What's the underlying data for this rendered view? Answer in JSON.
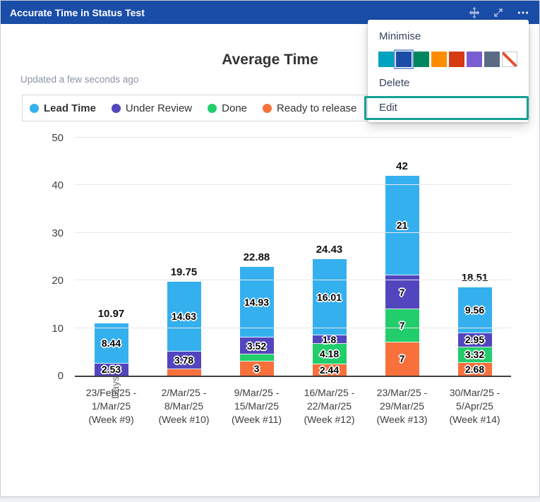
{
  "widget": {
    "title": "Accurate Time in Status Test",
    "header_icons": [
      "move-icon",
      "expand-icon",
      "more-menu-icon"
    ],
    "header_color": "#1a4da8"
  },
  "status": {
    "updated": "Updated a few seconds ago"
  },
  "menu": {
    "minimise_label": "Minimise",
    "delete_label": "Delete",
    "edit_label": "Edit",
    "highlight_color": "#11a292",
    "swatches": [
      {
        "name": "teal",
        "color": "#00a3bf",
        "selected": false
      },
      {
        "name": "royal-blue",
        "color": "#1a4da8",
        "selected": true
      },
      {
        "name": "green",
        "color": "#00875f",
        "selected": false
      },
      {
        "name": "orange",
        "color": "#ff8d00",
        "selected": false
      },
      {
        "name": "red",
        "color": "#d63a12",
        "selected": false
      },
      {
        "name": "purple",
        "color": "#7a5dd1",
        "selected": false
      },
      {
        "name": "slate",
        "color": "#5b6b85",
        "selected": false
      },
      {
        "name": "none",
        "color": "none",
        "selected": false
      }
    ]
  },
  "chart_data": {
    "type": "bar",
    "stacked": true,
    "title": "Average Time",
    "xlabel": "",
    "ylabel": "Days",
    "ylim": [
      0,
      50
    ],
    "yticks": [
      0,
      10,
      20,
      30,
      40,
      50
    ],
    "grid": true,
    "legend_position": "top",
    "categories": [
      "23/Feb/25 -\n1/Mar/25\n(Week #9)",
      "2/Mar/25 -\n8/Mar/25\n(Week #10)",
      "9/Mar/25 -\n15/Mar/25\n(Week #11)",
      "16/Mar/25 -\n22/Mar/25\n(Week #12)",
      "23/Mar/25 -\n29/Mar/25\n(Week #13)",
      "30/Mar/25 -\n5/Apr/25\n(Week #14)"
    ],
    "series": [
      {
        "name": "Ready to release",
        "color": "#f8703c",
        "values": [
          0,
          1.34,
          3,
          2.44,
          7,
          2.68
        ],
        "labels": [
          "",
          "",
          "3",
          "2.44",
          "7",
          "2.68"
        ]
      },
      {
        "name": "Done",
        "color": "#21ce6b",
        "values": [
          0,
          0,
          1.43,
          4.18,
          7,
          3.32
        ],
        "labels": [
          "",
          "",
          "",
          "4.18",
          "7",
          "3.32"
        ]
      },
      {
        "name": "Under Review",
        "color": "#5246be",
        "values": [
          2.53,
          3.78,
          3.52,
          1.8,
          7,
          2.95
        ],
        "labels": [
          "2.53",
          "3.78",
          "3.52",
          "1.8",
          "7",
          "2.95"
        ]
      },
      {
        "name": "Lead Time",
        "color": "#35b0ee",
        "values": [
          8.44,
          14.63,
          14.93,
          16.01,
          21,
          9.56
        ],
        "labels": [
          "8.44",
          "14.63",
          "14.93",
          "16.01",
          "21",
          "9.56"
        ]
      }
    ],
    "totals": [
      "10.97",
      "19.75",
      "22.88",
      "24.43",
      "42",
      "18.51"
    ],
    "legend": [
      {
        "label": "Lead Time",
        "color": "#35b0ee",
        "bold": true
      },
      {
        "label": "Under Review",
        "color": "#5246be",
        "bold": false
      },
      {
        "label": "Done",
        "color": "#21ce6b",
        "bold": false
      },
      {
        "label": "Ready to release",
        "color": "#f8703c",
        "bold": false
      }
    ]
  }
}
